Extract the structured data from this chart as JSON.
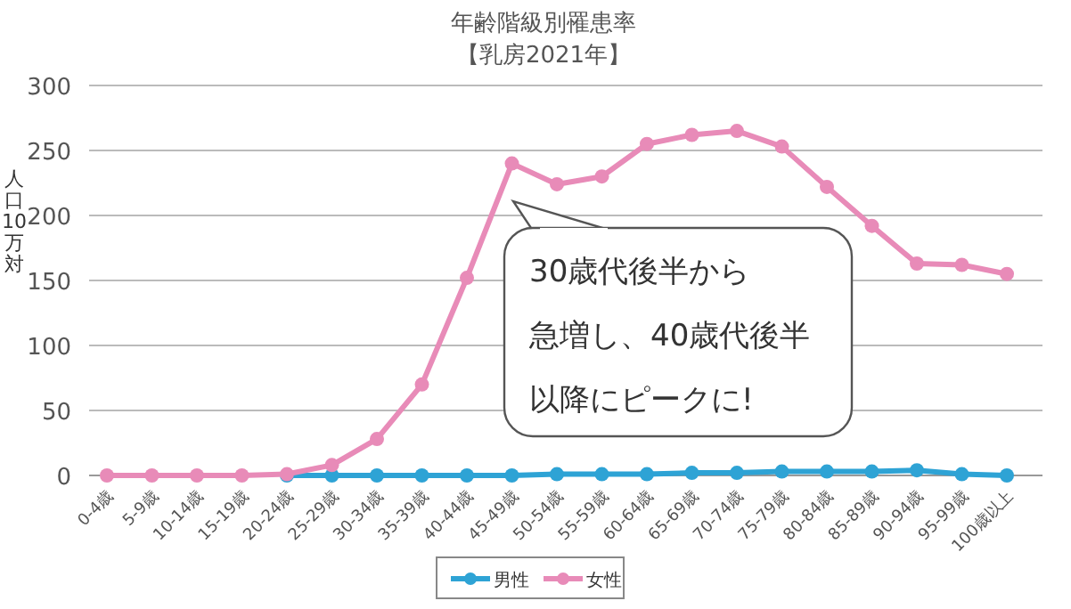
{
  "chart_data": {
    "type": "line",
    "title": "年齢階級別罹患率",
    "subtitle": "【乳房2021年】",
    "ylabel": "人口10万対",
    "categories": [
      "0-4歳",
      "5-9歳",
      "10-14歳",
      "15-19歳",
      "20-24歳",
      "25-29歳",
      "30-34歳",
      "35-39歳",
      "40-44歳",
      "45-49歳",
      "50-54歳",
      "55-59歳",
      "60-64歳",
      "65-69歳",
      "70-74歳",
      "75-79歳",
      "80-84歳",
      "85-89歳",
      "90-94歳",
      "95-99歳",
      "100歳以上"
    ],
    "series": [
      {
        "name": "男性",
        "color": "#2ea3d5",
        "values": [
          null,
          null,
          null,
          null,
          0,
          0,
          0,
          0,
          0,
          0,
          1,
          1,
          1,
          2,
          2,
          3,
          3,
          3,
          4,
          1,
          0
        ]
      },
      {
        "name": "女性",
        "color": "#e88bb8",
        "values": [
          0,
          0,
          0,
          0,
          1,
          8,
          28,
          70,
          152,
          240,
          224,
          230,
          255,
          262,
          265,
          253,
          222,
          192,
          163,
          162,
          155
        ]
      }
    ],
    "ylim": [
      0,
      300
    ],
    "yticks": [
      0,
      50,
      100,
      150,
      200,
      250,
      300
    ],
    "grid": "y",
    "legend": "bottom",
    "marker": "circle",
    "line_style": "solid",
    "annotations": [
      "30歳代後半から",
      "急増し、40歳代後半",
      "以降にピークに!"
    ]
  }
}
